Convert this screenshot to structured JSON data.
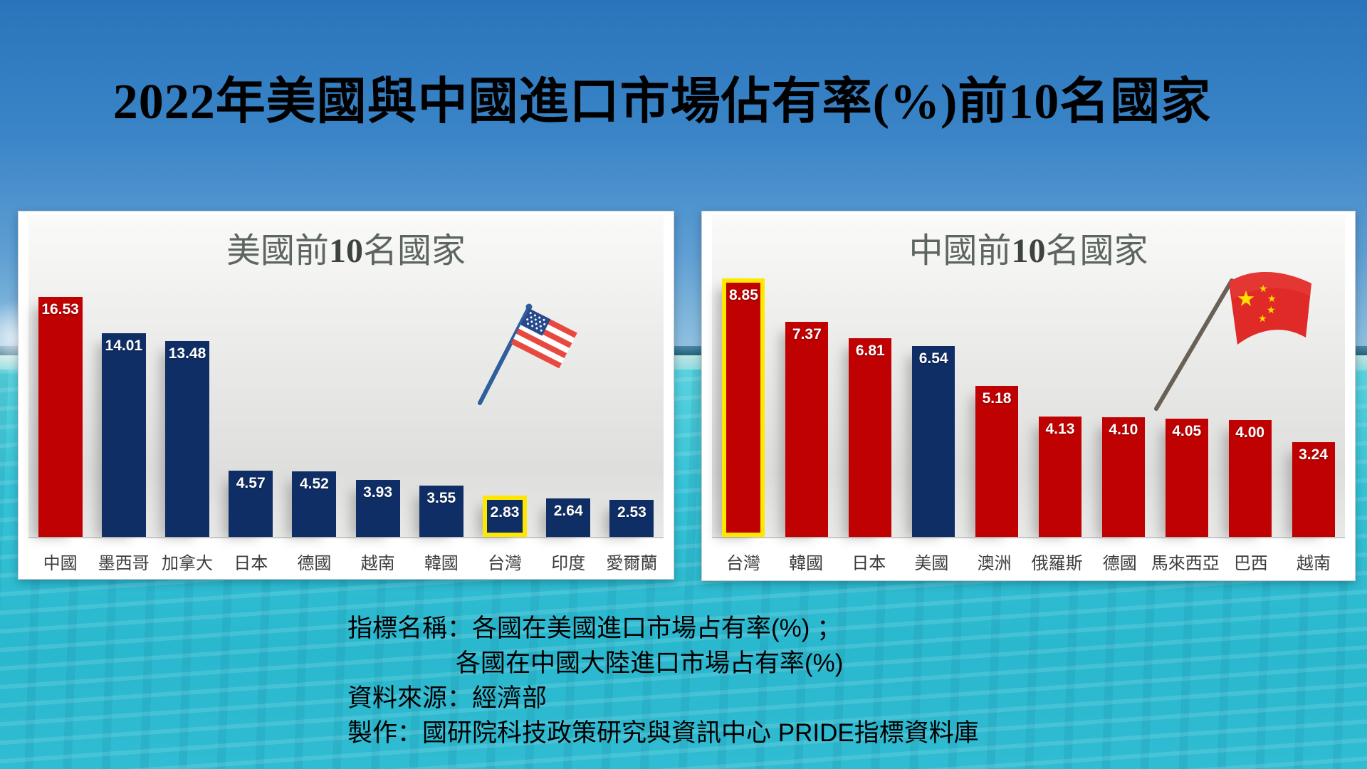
{
  "title": "2022年美國與中國進口市場佔有率(%)前10名國家",
  "charts": [
    {
      "title": "美國前10名國家",
      "title_prefix": "美國前",
      "title_number": "10",
      "title_suffix": "名國家",
      "flag_icon": "us-flag-icon"
    },
    {
      "title": "中國前10名國家",
      "title_prefix": "中國前",
      "title_number": "10",
      "title_suffix": "名國家",
      "flag_icon": "china-flag-icon"
    }
  ],
  "chart_data": [
    {
      "type": "bar",
      "title": "美國前10名國家",
      "categories": [
        "中國",
        "墨西哥",
        "加拿大",
        "日本",
        "德國",
        "越南",
        "韓國",
        "台灣",
        "印度",
        "愛爾蘭"
      ],
      "values": [
        16.53,
        14.01,
        13.48,
        4.57,
        4.52,
        3.93,
        3.55,
        2.83,
        2.64,
        2.53
      ],
      "value_labels": [
        "16.53",
        "14.01",
        "13.48",
        "4.57",
        "4.52",
        "3.93",
        "3.55",
        "2.83",
        "2.64",
        "2.53"
      ],
      "colors": [
        "#c00101",
        "#0f2e66",
        "#0f2e66",
        "#0f2e66",
        "#0f2e66",
        "#0f2e66",
        "#0f2e66",
        "#0f2e66",
        "#0f2e66",
        "#0f2e66"
      ],
      "highlight_index": 7,
      "highlight_color": "#ffe800",
      "highlighted_category": "台灣",
      "data_labels": true,
      "grid": false,
      "legend": false,
      "xlabel": "",
      "ylabel": ""
    },
    {
      "type": "bar",
      "title": "中國前10名國家",
      "categories": [
        "台灣",
        "韓國",
        "日本",
        "美國",
        "澳洲",
        "俄羅斯",
        "德國",
        "馬來西亞",
        "巴西",
        "越南"
      ],
      "values": [
        8.85,
        7.37,
        6.81,
        6.54,
        5.18,
        4.13,
        4.1,
        4.05,
        4.0,
        3.24
      ],
      "value_labels": [
        "8.85",
        "7.37",
        "6.81",
        "6.54",
        "5.18",
        "4.13",
        "4.10",
        "4.05",
        "4.00",
        "3.24"
      ],
      "colors": [
        "#c00101",
        "#c00101",
        "#c00101",
        "#0f2e66",
        "#c00101",
        "#c00101",
        "#c00101",
        "#c00101",
        "#c00101",
        "#c00101"
      ],
      "highlight_index": 0,
      "highlight_color": "#ffe800",
      "highlighted_category": "台灣",
      "data_labels": true,
      "grid": false,
      "legend": false,
      "xlabel": "",
      "ylabel": ""
    }
  ],
  "footer": {
    "line1": "指標名稱：各國在美國進口市場占有率(%) ；",
    "line2": "各國在中國大陸進口市場占有率(%)",
    "line3": "資料來源：經濟部",
    "line4": "製作：國研院科技政策研究與資訊中心 PRIDE指標資料庫"
  },
  "palette": {
    "bar_red": "#c00101",
    "bar_navy": "#0f2e66",
    "highlight_yellow": "#ffe800",
    "sky_blue": "#2a74bc",
    "water_turquoise": "#2ab8cf",
    "chart_title_gray": "#5d655f"
  }
}
